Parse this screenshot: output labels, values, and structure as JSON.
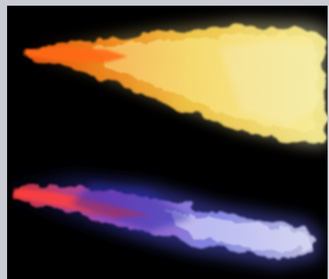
{
  "scene": {
    "background": "#000000",
    "frame_color": "#c9cdd3",
    "plumes": [
      {
        "id": "upper-plume",
        "description_color": "yellow-orange",
        "core_color": "#ff8a1c",
        "mid_color": "#ffd64a",
        "edge_color": "#f4f0b0",
        "haze_color": "#e6e6d0"
      },
      {
        "id": "lower-plume",
        "description_color": "blue-violet",
        "core_color": "#ff4a4a",
        "mid_color": "#7a78ff",
        "edge_color": "#c8c8ff",
        "haze_color": "#3a3cc8"
      }
    ]
  }
}
